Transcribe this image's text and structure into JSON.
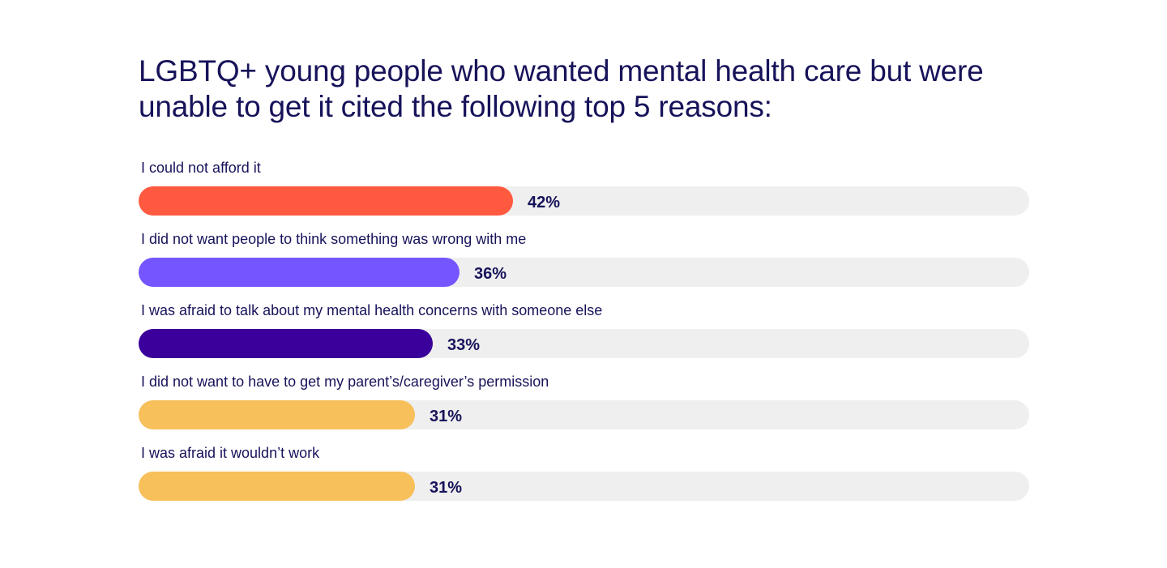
{
  "chart_data": {
    "type": "bar",
    "orientation": "horizontal",
    "title": "LGBTQ+ young people who wanted mental health care but were unable to get it cited the following top 5 reasons:",
    "categories": [
      "I could not afford it",
      "I did not want people to think something was wrong with me",
      "I was afraid to talk about my mental health concerns with someone else",
      "I did not want to have to get my parent’s/caregiver’s permission",
      "I was afraid it wouldn’t work"
    ],
    "values": [
      42,
      36,
      33,
      31,
      31
    ],
    "value_labels": [
      "42%",
      "36%",
      "33%",
      "31%",
      "31%"
    ],
    "colors": [
      "#ff5a3f",
      "#7555ff",
      "#3b009b",
      "#f7c05a",
      "#f7c05a"
    ],
    "track_color": "#efefef",
    "xlim": [
      0,
      100
    ],
    "grid": false
  }
}
